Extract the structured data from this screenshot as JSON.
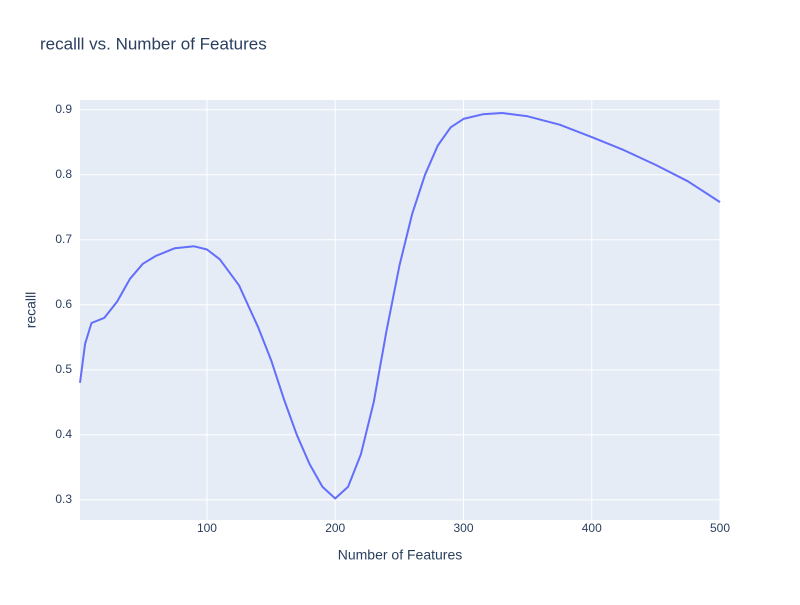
{
  "chart_data": {
    "type": "line",
    "title": "recalll vs. Number of Features",
    "x_label": "Number of Features",
    "y_label": "recalll",
    "x": [
      1,
      5,
      10,
      20,
      30,
      40,
      50,
      60,
      75,
      90,
      100,
      110,
      125,
      140,
      150,
      160,
      170,
      180,
      190,
      200,
      210,
      220,
      230,
      240,
      250,
      260,
      270,
      280,
      290,
      300,
      315,
      330,
      350,
      375,
      400,
      425,
      450,
      475,
      500
    ],
    "series": [
      {
        "name": "recalll",
        "color": "#636efa",
        "values": [
          0.48,
          0.54,
          0.572,
          0.58,
          0.605,
          0.64,
          0.663,
          0.675,
          0.687,
          0.69,
          0.685,
          0.67,
          0.63,
          0.565,
          0.515,
          0.455,
          0.4,
          0.355,
          0.32,
          0.302,
          0.32,
          0.37,
          0.45,
          0.56,
          0.66,
          0.74,
          0.8,
          0.845,
          0.873,
          0.886,
          0.893,
          0.895,
          0.89,
          0.877,
          0.858,
          0.838,
          0.815,
          0.79,
          0.758
        ]
      }
    ],
    "xlim": [
      1,
      500
    ],
    "ylim": [
      0.269,
      0.915
    ],
    "xticks": [
      100,
      200,
      300,
      400,
      500
    ],
    "yticks": [
      0.3,
      0.4,
      0.5,
      0.6,
      0.7,
      0.8,
      0.9
    ],
    "grid": true
  }
}
